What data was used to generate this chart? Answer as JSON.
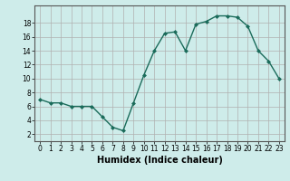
{
  "x": [
    0,
    1,
    2,
    3,
    4,
    5,
    6,
    7,
    8,
    9,
    10,
    11,
    12,
    13,
    14,
    15,
    16,
    17,
    18,
    19,
    20,
    21,
    22,
    23
  ],
  "y": [
    7.0,
    6.5,
    6.5,
    6.0,
    6.0,
    6.0,
    4.5,
    3.0,
    2.5,
    6.5,
    10.5,
    14.0,
    16.5,
    16.7,
    14.0,
    17.8,
    18.2,
    19.0,
    19.0,
    18.8,
    17.5,
    14.0,
    12.5,
    10.0
  ],
  "xlabel": "Humidex (Indice chaleur)",
  "xlim": [
    -0.5,
    23.5
  ],
  "ylim": [
    1,
    20.5
  ],
  "yticks": [
    2,
    4,
    6,
    8,
    10,
    12,
    14,
    16,
    18
  ],
  "xticks": [
    0,
    1,
    2,
    3,
    4,
    5,
    6,
    7,
    8,
    9,
    10,
    11,
    12,
    13,
    14,
    15,
    16,
    17,
    18,
    19,
    20,
    21,
    22,
    23
  ],
  "line_color": "#1a6b5a",
  "marker_color": "#1a6b5a",
  "bg_color": "#ceecea",
  "grid_color": "#b0b0b0",
  "fig_bg": "#ceecea",
  "tick_fontsize": 5.5,
  "xlabel_fontsize": 7.0,
  "linewidth": 1.0,
  "markersize": 2.0
}
